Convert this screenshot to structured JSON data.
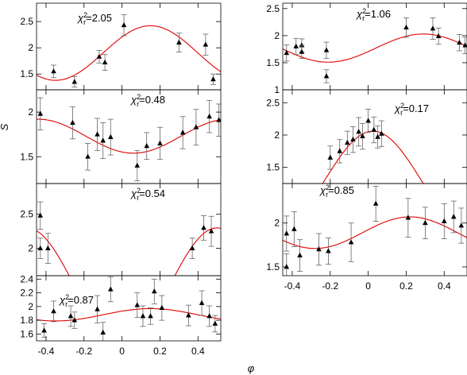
{
  "figure": {
    "xlabel": "φ",
    "ylabel": "S"
  },
  "chart_data": [
    {
      "type": "scatter",
      "column": "left",
      "row": 0,
      "annotation_chi": "χ",
      "annotation_exp": "2",
      "annotation_sub": "r",
      "annotation_value": "=2.05",
      "xlim": [
        -0.45,
        0.52
      ],
      "ylim": [
        1.2,
        2.85
      ],
      "yticks": [
        1.5,
        2,
        2.5
      ],
      "ytick_labels": [
        "1.5",
        "2",
        "2.5"
      ],
      "points": [
        {
          "x": -0.36,
          "y": 1.55,
          "err": 0.12
        },
        {
          "x": -0.25,
          "y": 1.35,
          "err": 0.1
        },
        {
          "x": -0.12,
          "y": 1.83,
          "err": 0.12
        },
        {
          "x": -0.09,
          "y": 1.72,
          "err": 0.15
        },
        {
          "x": 0.01,
          "y": 2.43,
          "err": 0.2
        },
        {
          "x": 0.3,
          "y": 2.1,
          "err": 0.18
        },
        {
          "x": 0.44,
          "y": 2.06,
          "err": 0.2
        },
        {
          "x": 0.48,
          "y": 1.4,
          "err": 0.1
        }
      ],
      "model": {
        "mean": 1.9,
        "amp": 0.52,
        "phase": 0.15
      }
    },
    {
      "type": "scatter",
      "column": "left",
      "row": 1,
      "annotation_chi": "χ",
      "annotation_exp": "2",
      "annotation_sub": "r",
      "annotation_value": "=0.48",
      "xlim": [
        -0.45,
        0.52
      ],
      "ylim": [
        1.2,
        2.25
      ],
      "yticks": [
        1.5,
        2
      ],
      "ytick_labels": [
        "1.5",
        "2"
      ],
      "points": [
        {
          "x": -0.43,
          "y": 1.98,
          "err": 0.18
        },
        {
          "x": -0.26,
          "y": 1.88,
          "err": 0.18
        },
        {
          "x": -0.18,
          "y": 1.5,
          "err": 0.15
        },
        {
          "x": -0.13,
          "y": 1.75,
          "err": 0.18
        },
        {
          "x": -0.1,
          "y": 1.68,
          "err": 0.2
        },
        {
          "x": -0.06,
          "y": 1.72,
          "err": 0.2
        },
        {
          "x": 0.08,
          "y": 1.4,
          "err": 0.17
        },
        {
          "x": 0.13,
          "y": 1.62,
          "err": 0.15
        },
        {
          "x": 0.2,
          "y": 1.65,
          "err": 0.18
        },
        {
          "x": 0.32,
          "y": 1.77,
          "err": 0.18
        },
        {
          "x": 0.39,
          "y": 1.83,
          "err": 0.2
        },
        {
          "x": 0.46,
          "y": 1.95,
          "err": 0.18
        },
        {
          "x": 0.51,
          "y": 1.91,
          "err": 0.18
        }
      ],
      "model": {
        "mean": 1.73,
        "amp": 0.19,
        "phase": -0.44
      }
    },
    {
      "type": "scatter",
      "column": "left",
      "row": 2,
      "annotation_chi": "χ",
      "annotation_exp": "2",
      "annotation_sub": "r",
      "annotation_value": "=0.54",
      "xlim": [
        -0.45,
        0.52
      ],
      "ylim": [
        1.6,
        2.95
      ],
      "yticks": [
        2,
        2.5
      ],
      "ytick_labels": [
        "2",
        "2.5"
      ],
      "points": [
        {
          "x": -0.43,
          "y": 2.48,
          "err": 0.2
        },
        {
          "x": -0.43,
          "y": 2.0,
          "err": 0.15
        },
        {
          "x": -0.39,
          "y": 2.0,
          "err": 0.22
        },
        {
          "x": 0.37,
          "y": 2.0,
          "err": 0.15
        },
        {
          "x": 0.43,
          "y": 2.3,
          "err": 0.18
        },
        {
          "x": 0.47,
          "y": 2.25,
          "err": 0.22
        }
      ],
      "model": {
        "mean": 1.45,
        "amp": 0.85,
        "phase": 0.5
      }
    },
    {
      "type": "scatter",
      "column": "left",
      "row": 3,
      "annotation_chi": "χ",
      "annotation_exp": "2",
      "annotation_sub": "r",
      "annotation_value": "=0.87",
      "xlim": [
        -0.45,
        0.52
      ],
      "ylim": [
        1.5,
        2.45
      ],
      "yticks": [
        1.6,
        1.8,
        2,
        2.2,
        2.4
      ],
      "ytick_labels": [
        "1.6",
        "1.8",
        "2",
        "2.2",
        "2.4"
      ],
      "xticks": [
        -0.4,
        -0.2,
        0,
        0.2,
        0.4
      ],
      "xtick_labels": [
        "-0.4",
        "-0.2",
        "0",
        "0.2",
        "0.4"
      ],
      "points": [
        {
          "x": -0.41,
          "y": 1.65,
          "err": 0.1
        },
        {
          "x": -0.36,
          "y": 1.93,
          "err": 0.15
        },
        {
          "x": -0.27,
          "y": 1.86,
          "err": 0.15
        },
        {
          "x": -0.25,
          "y": 1.8,
          "err": 0.12
        },
        {
          "x": -0.13,
          "y": 1.96,
          "err": 0.2
        },
        {
          "x": -0.1,
          "y": 1.62,
          "err": 0.15
        },
        {
          "x": -0.06,
          "y": 2.25,
          "err": 0.18
        },
        {
          "x": 0.08,
          "y": 2.02,
          "err": 0.18
        },
        {
          "x": 0.11,
          "y": 1.86,
          "err": 0.15
        },
        {
          "x": 0.15,
          "y": 1.86,
          "err": 0.12
        },
        {
          "x": 0.17,
          "y": 2.22,
          "err": 0.18
        },
        {
          "x": 0.21,
          "y": 1.98,
          "err": 0.18
        },
        {
          "x": 0.35,
          "y": 1.87,
          "err": 0.15
        },
        {
          "x": 0.42,
          "y": 2.05,
          "err": 0.18
        },
        {
          "x": 0.46,
          "y": 1.86,
          "err": 0.15
        },
        {
          "x": 0.49,
          "y": 1.75,
          "err": 0.12
        }
      ],
      "model": {
        "mean": 1.88,
        "amp": 0.09,
        "phase": 0.15
      }
    },
    {
      "type": "scatter",
      "column": "right",
      "row": 0,
      "annotation_chi": "χ",
      "annotation_exp": "2",
      "annotation_sub": "r",
      "annotation_value": "=1.06",
      "xlim": [
        -0.45,
        0.52
      ],
      "ylim": [
        1.0,
        2.6
      ],
      "yticks": [
        1,
        1.5,
        2,
        2.5
      ],
      "ytick_labels": [
        "1",
        "1.5",
        "2",
        "2.5"
      ],
      "points": [
        {
          "x": -0.43,
          "y": 1.68,
          "err": 0.15
        },
        {
          "x": -0.38,
          "y": 1.8,
          "err": 0.15
        },
        {
          "x": -0.35,
          "y": 1.82,
          "err": 0.12
        },
        {
          "x": -0.35,
          "y": 1.7,
          "err": 0.12
        },
        {
          "x": -0.22,
          "y": 1.73,
          "err": 0.15
        },
        {
          "x": -0.22,
          "y": 1.25,
          "err": 0.12
        },
        {
          "x": 0.2,
          "y": 2.15,
          "err": 0.18
        },
        {
          "x": 0.34,
          "y": 2.13,
          "err": 0.2
        },
        {
          "x": 0.37,
          "y": 1.99,
          "err": 0.15
        },
        {
          "x": 0.48,
          "y": 1.87,
          "err": 0.15
        },
        {
          "x": 0.51,
          "y": 1.82,
          "err": 0.15
        }
      ],
      "model": {
        "mean": 1.77,
        "amp": 0.26,
        "phase": 0.29
      }
    },
    {
      "type": "scatter",
      "column": "right",
      "row": 1,
      "annotation_chi": "χ",
      "annotation_exp": "2",
      "annotation_sub": "r",
      "annotation_value": "=0.17",
      "xlim": [
        -0.45,
        0.52
      ],
      "ylim": [
        1.25,
        2.7
      ],
      "yticks": [
        1.5,
        2,
        2.5
      ],
      "ytick_labels": [
        "1.5",
        "2",
        "2.5"
      ],
      "points": [
        {
          "x": -0.2,
          "y": 1.65,
          "err": 0.18
        },
        {
          "x": -0.15,
          "y": 1.75,
          "err": 0.18
        },
        {
          "x": -0.11,
          "y": 1.88,
          "err": 0.18
        },
        {
          "x": -0.08,
          "y": 1.93,
          "err": 0.2
        },
        {
          "x": -0.05,
          "y": 2.05,
          "err": 0.22
        },
        {
          "x": -0.03,
          "y": 1.98,
          "err": 0.2
        },
        {
          "x": 0.0,
          "y": 2.22,
          "err": 0.18
        },
        {
          "x": 0.03,
          "y": 2.08,
          "err": 0.2
        },
        {
          "x": 0.05,
          "y": 1.97,
          "err": 0.17
        },
        {
          "x": 0.07,
          "y": 2.02,
          "err": 0.2
        }
      ],
      "model": {
        "mean": 1.32,
        "amp": 0.74,
        "phase": 0.025
      }
    },
    {
      "type": "scatter",
      "column": "right",
      "row": 2,
      "annotation_chi": "χ",
      "annotation_exp": "2",
      "annotation_sub": "r",
      "annotation_value": "=0.85",
      "xlim": [
        -0.45,
        0.52
      ],
      "ylim": [
        1.4,
        2.45
      ],
      "yticks": [
        1.5,
        2
      ],
      "ytick_labels": [
        "1.5",
        "2"
      ],
      "xticks": [
        -0.4,
        -0.2,
        0,
        0.2,
        0.4
      ],
      "xtick_labels": [
        "-0.4",
        "-0.2",
        "0",
        "0.2",
        "0.4"
      ],
      "points": [
        {
          "x": -0.43,
          "y": 1.88,
          "err": 0.2
        },
        {
          "x": -0.43,
          "y": 1.5,
          "err": 0.15
        },
        {
          "x": -0.39,
          "y": 1.93,
          "err": 0.2
        },
        {
          "x": -0.36,
          "y": 1.63,
          "err": 0.18
        },
        {
          "x": -0.26,
          "y": 1.7,
          "err": 0.18
        },
        {
          "x": -0.21,
          "y": 1.68,
          "err": 0.15
        },
        {
          "x": -0.09,
          "y": 1.78,
          "err": 0.22
        },
        {
          "x": 0.04,
          "y": 2.22,
          "err": 0.2
        },
        {
          "x": 0.21,
          "y": 2.06,
          "err": 0.22
        },
        {
          "x": 0.3,
          "y": 2.0,
          "err": 0.18
        },
        {
          "x": 0.4,
          "y": 2.02,
          "err": 0.2
        },
        {
          "x": 0.45,
          "y": 2.07,
          "err": 0.18
        },
        {
          "x": 0.49,
          "y": 1.97,
          "err": 0.2
        }
      ],
      "model": {
        "mean": 1.89,
        "amp": 0.18,
        "phase": 0.22
      }
    }
  ]
}
